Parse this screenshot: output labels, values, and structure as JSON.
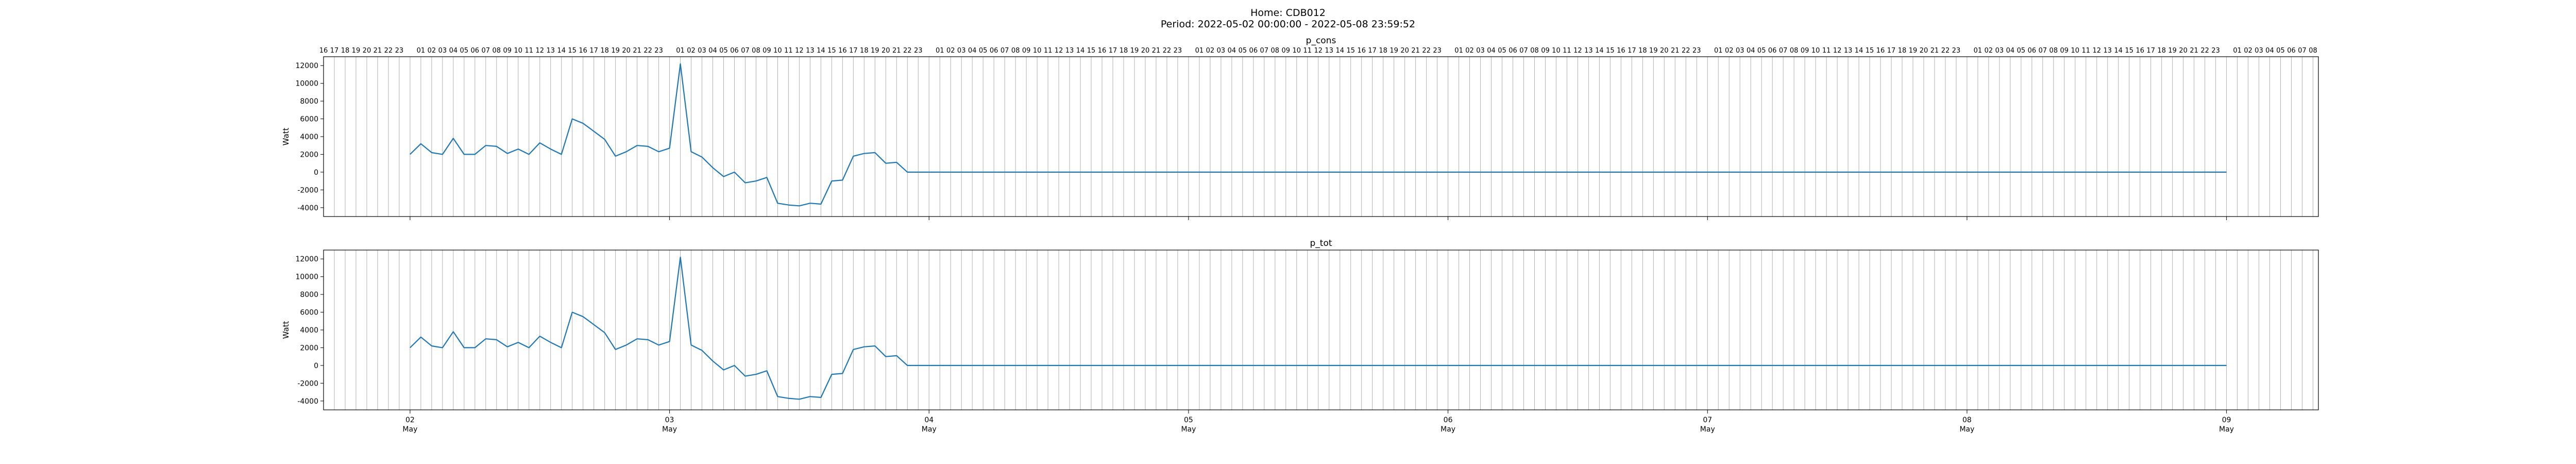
{
  "figure": {
    "title_line1": "Home: CDB012",
    "title_line2": "Period: 2022-05-02 00:00:00 - 2022-05-08 23:59:52"
  },
  "colors": {
    "series": "#1f77b4",
    "axis": "#000000",
    "grid": "#b0b0b0"
  },
  "chart_data": [
    {
      "type": "line",
      "title": "p_cons",
      "ylabel": "Watt",
      "xlabel": "",
      "xlim": [
        "2022-05-01 16:00",
        "2022-05-09 08:30"
      ],
      "ylim": [
        -5000,
        13000
      ],
      "yticks": [
        -4000,
        -2000,
        0,
        2000,
        4000,
        6000,
        8000,
        10000,
        12000
      ],
      "grid": "vertical, hourly",
      "legend": "none",
      "top_axis": "hour of day (16 ... 23, 01 ... 23, ...) on the top edge",
      "x_major_ticks": [
        {
          "date": "2022-05-02",
          "day": "02",
          "month": "May"
        },
        {
          "date": "2022-05-03",
          "day": "03",
          "month": "May"
        },
        {
          "date": "2022-05-04",
          "day": "04",
          "month": "May"
        },
        {
          "date": "2022-05-05",
          "day": "05",
          "month": "May"
        },
        {
          "date": "2022-05-06",
          "day": "06",
          "month": "May"
        },
        {
          "date": "2022-05-07",
          "day": "07",
          "month": "May"
        },
        {
          "date": "2022-05-08",
          "day": "08",
          "month": "May"
        },
        {
          "date": "2022-05-09",
          "day": "09",
          "month": "May"
        }
      ],
      "series": [
        {
          "x": [
            "2022-05-02 00:00",
            "2022-05-02 01:00",
            "2022-05-02 02:00",
            "2022-05-02 03:00",
            "2022-05-02 04:00",
            "2022-05-02 05:00",
            "2022-05-02 06:00",
            "2022-05-02 07:00",
            "2022-05-02 08:00",
            "2022-05-02 09:00",
            "2022-05-02 10:00",
            "2022-05-02 11:00",
            "2022-05-02 12:00",
            "2022-05-02 13:00",
            "2022-05-02 14:00",
            "2022-05-02 15:00",
            "2022-05-02 16:00",
            "2022-05-02 17:00",
            "2022-05-02 18:00",
            "2022-05-02 19:00",
            "2022-05-02 20:00",
            "2022-05-02 21:00",
            "2022-05-02 22:00",
            "2022-05-02 23:00",
            "2022-05-03 00:00",
            "2022-05-03 01:00",
            "2022-05-03 02:00",
            "2022-05-03 03:00",
            "2022-05-03 04:00",
            "2022-05-03 05:00",
            "2022-05-03 06:00",
            "2022-05-03 07:00",
            "2022-05-03 08:00",
            "2022-05-03 09:00",
            "2022-05-03 10:00",
            "2022-05-03 11:00",
            "2022-05-03 12:00",
            "2022-05-03 13:00",
            "2022-05-03 14:00",
            "2022-05-03 15:00",
            "2022-05-03 16:00",
            "2022-05-03 17:00",
            "2022-05-03 18:00",
            "2022-05-03 19:00",
            "2022-05-03 20:00",
            "2022-05-03 21:00",
            "2022-05-03 22:00",
            "2022-05-03 23:00",
            "2022-05-04 00:00",
            "2022-05-09 00:00"
          ],
          "y": [
            2000,
            3200,
            2200,
            2000,
            3800,
            2000,
            2000,
            3000,
            2900,
            2100,
            2600,
            2000,
            3300,
            2600,
            2000,
            6000,
            5500,
            4600,
            3700,
            1800,
            2300,
            3000,
            2900,
            2300,
            2700,
            12200,
            2300,
            1700,
            500,
            -500,
            0,
            -1200,
            -1000,
            -600,
            -3500,
            -3700,
            -3800,
            -3500,
            -3600,
            -1000,
            -900,
            1800,
            2100,
            2200,
            1000,
            1100,
            0,
            0,
            0,
            0
          ]
        }
      ]
    },
    {
      "type": "line",
      "title": "p_tot",
      "ylabel": "Watt",
      "xlabel": "",
      "xlim": [
        "2022-05-01 16:00",
        "2022-05-09 08:30"
      ],
      "ylim": [
        -5000,
        13000
      ],
      "yticks": [
        -4000,
        -2000,
        0,
        2000,
        4000,
        6000,
        8000,
        10000,
        12000
      ],
      "grid": "vertical, hourly",
      "legend": "none",
      "x_major_ticks": [
        {
          "date": "2022-05-02",
          "day": "02",
          "month": "May"
        },
        {
          "date": "2022-05-03",
          "day": "03",
          "month": "May"
        },
        {
          "date": "2022-05-04",
          "day": "04",
          "month": "May"
        },
        {
          "date": "2022-05-05",
          "day": "05",
          "month": "May"
        },
        {
          "date": "2022-05-06",
          "day": "06",
          "month": "May"
        },
        {
          "date": "2022-05-07",
          "day": "07",
          "month": "May"
        },
        {
          "date": "2022-05-08",
          "day": "08",
          "month": "May"
        },
        {
          "date": "2022-05-09",
          "day": "09",
          "month": "May"
        }
      ],
      "series": [
        {
          "x": [
            "2022-05-02 00:00",
            "2022-05-02 01:00",
            "2022-05-02 02:00",
            "2022-05-02 03:00",
            "2022-05-02 04:00",
            "2022-05-02 05:00",
            "2022-05-02 06:00",
            "2022-05-02 07:00",
            "2022-05-02 08:00",
            "2022-05-02 09:00",
            "2022-05-02 10:00",
            "2022-05-02 11:00",
            "2022-05-02 12:00",
            "2022-05-02 13:00",
            "2022-05-02 14:00",
            "2022-05-02 15:00",
            "2022-05-02 16:00",
            "2022-05-02 17:00",
            "2022-05-02 18:00",
            "2022-05-02 19:00",
            "2022-05-02 20:00",
            "2022-05-02 21:00",
            "2022-05-02 22:00",
            "2022-05-02 23:00",
            "2022-05-03 00:00",
            "2022-05-03 01:00",
            "2022-05-03 02:00",
            "2022-05-03 03:00",
            "2022-05-03 04:00",
            "2022-05-03 05:00",
            "2022-05-03 06:00",
            "2022-05-03 07:00",
            "2022-05-03 08:00",
            "2022-05-03 09:00",
            "2022-05-03 10:00",
            "2022-05-03 11:00",
            "2022-05-03 12:00",
            "2022-05-03 13:00",
            "2022-05-03 14:00",
            "2022-05-03 15:00",
            "2022-05-03 16:00",
            "2022-05-03 17:00",
            "2022-05-03 18:00",
            "2022-05-03 19:00",
            "2022-05-03 20:00",
            "2022-05-03 21:00",
            "2022-05-03 22:00",
            "2022-05-03 23:00",
            "2022-05-04 00:00",
            "2022-05-09 00:00"
          ],
          "y": [
            2000,
            3200,
            2200,
            2000,
            3800,
            2000,
            2000,
            3000,
            2900,
            2100,
            2600,
            2000,
            3300,
            2600,
            2000,
            6000,
            5500,
            4600,
            3700,
            1800,
            2300,
            3000,
            2900,
            2300,
            2700,
            12200,
            2300,
            1700,
            500,
            -500,
            0,
            -1200,
            -1000,
            -600,
            -3500,
            -3700,
            -3800,
            -3500,
            -3600,
            -1000,
            -900,
            1800,
            2100,
            2200,
            1000,
            1100,
            0,
            0,
            0,
            0
          ]
        }
      ]
    }
  ]
}
